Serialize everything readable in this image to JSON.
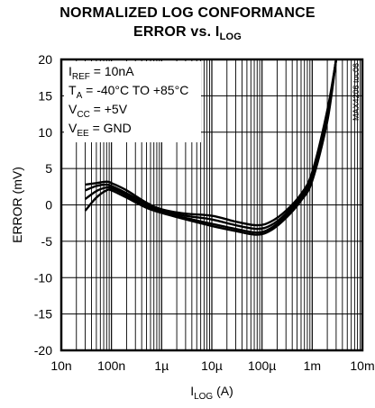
{
  "chart_data": {
    "type": "line",
    "title_line1": "NORMALIZED LOG CONFORMANCE",
    "title_line2_prefix": "ERROR vs. I",
    "title_line2_sub": "LOG",
    "xlabel_main": "I",
    "xlabel_sub": "LOG",
    "xlabel_unit": " (A)",
    "ylabel": "ERROR (mV)",
    "x_scale": "log",
    "xlim": [
      1e-08,
      0.01
    ],
    "ylim": [
      -20,
      20
    ],
    "grid": true,
    "x_ticks": [
      {
        "value": 1e-08,
        "label": "10n"
      },
      {
        "value": 1e-07,
        "label": "100n"
      },
      {
        "value": 1e-06,
        "label": "1µ"
      },
      {
        "value": 1e-05,
        "label": "10µ"
      },
      {
        "value": 0.0001,
        "label": "100µ"
      },
      {
        "value": 0.001,
        "label": "1m"
      },
      {
        "value": 0.01,
        "label": "10m"
      }
    ],
    "y_ticks": [
      20,
      15,
      10,
      5,
      0,
      -5,
      -10,
      -15,
      -20
    ],
    "annotations": [
      {
        "main": "I",
        "sub": "REF",
        "rest": " = 10nA"
      },
      {
        "main": "T",
        "sub": "A",
        "rest": " = -40°C TO +85°C"
      },
      {
        "main": "V",
        "sub": "CC",
        "rest": " = +5V"
      },
      {
        "main": "V",
        "sub": "EE",
        "rest": " = GND"
      }
    ],
    "watermark": "MAX4206 toc06",
    "series": [
      {
        "x": [
          3e-08,
          5e-08,
          8e-08,
          1e-07,
          2e-07,
          5e-07,
          1e-06,
          3e-06,
          1e-05,
          3e-05,
          8e-05,
          0.00015,
          0.0003,
          0.0006,
          0.001,
          0.002,
          0.003
        ],
        "y": [
          2.8,
          3.0,
          3.2,
          3.0,
          2.0,
          0.3,
          -0.6,
          -1.2,
          -1.5,
          -2.3,
          -2.8,
          -2.3,
          -0.8,
          1.5,
          4.5,
          13,
          20
        ]
      },
      {
        "x": [
          3e-08,
          5e-08,
          8e-08,
          1e-07,
          2e-07,
          5e-07,
          1e-06,
          3e-06,
          1e-05,
          3e-05,
          8e-05,
          0.00015,
          0.0003,
          0.0006,
          0.001,
          0.002,
          0.003
        ],
        "y": [
          2.0,
          2.6,
          2.8,
          2.6,
          1.6,
          0.1,
          -0.8,
          -1.5,
          -2.0,
          -2.8,
          -3.3,
          -2.8,
          -1.2,
          1.2,
          4.0,
          12.5,
          20
        ]
      },
      {
        "x": [
          3e-08,
          5e-08,
          8e-08,
          1e-07,
          2e-07,
          5e-07,
          1e-06,
          3e-06,
          1e-05,
          3e-05,
          8e-05,
          0.00015,
          0.0003,
          0.0006,
          0.001,
          0.002,
          0.003
        ],
        "y": [
          0.8,
          1.9,
          2.4,
          2.3,
          1.3,
          -0.2,
          -1.0,
          -1.8,
          -2.6,
          -3.3,
          -3.8,
          -3.2,
          -1.5,
          0.9,
          3.6,
          12,
          20
        ]
      },
      {
        "x": [
          3e-08,
          5e-08,
          8e-08,
          1e-07,
          2e-07,
          5e-07,
          1e-06,
          3e-06,
          1e-05,
          3e-05,
          8e-05,
          0.00015,
          0.0003,
          0.0006,
          0.001,
          0.002,
          0.003
        ],
        "y": [
          -0.8,
          1.0,
          2.0,
          2.0,
          1.0,
          -0.4,
          -1.1,
          -2.0,
          -2.9,
          -3.6,
          -4.1,
          -3.5,
          -1.8,
          0.6,
          3.3,
          11.5,
          20
        ]
      }
    ]
  }
}
